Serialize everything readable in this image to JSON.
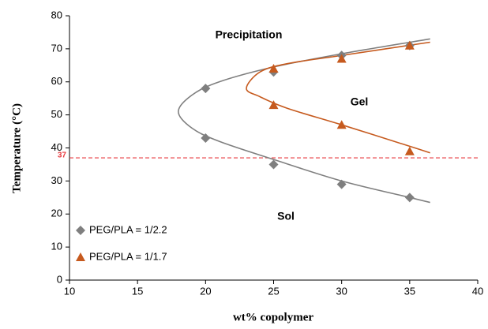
{
  "chart_data": {
    "type": "scatter",
    "x_label": "wt% copolymer",
    "y_label": "Temperature (°C)",
    "xlim": [
      10,
      40
    ],
    "xticks": [
      10,
      15,
      20,
      25,
      30,
      35,
      40
    ],
    "ylim": [
      0,
      80
    ],
    "yticks": [
      0,
      10,
      20,
      30,
      40,
      50,
      60,
      70,
      80
    ],
    "grid": false,
    "legend": "lower left",
    "annotations": [
      "Precipitation",
      "Gel",
      "Sol"
    ],
    "reference_line": {
      "value": 37,
      "color": "#e8383d"
    },
    "series": [
      {
        "name": "PEG/PLA = 1/2.2",
        "color": "#7f7f7f",
        "marker": "diamond",
        "x": [
          20,
          20,
          25,
          30,
          35,
          25,
          30,
          35
        ],
        "y": [
          58,
          43,
          35,
          29,
          25,
          63,
          68,
          71
        ],
        "fit": {
          "x": [
            36.5,
            30,
            25,
            21,
            19,
            18,
            19,
            21,
            25,
            30,
            35,
            36.5
          ],
          "y": [
            73,
            68.5,
            64.5,
            60,
            56,
            51,
            46,
            42,
            36.5,
            30,
            25,
            23.5
          ]
        }
      },
      {
        "name": "PEG/PLA = 1/1.7",
        "color": "#c65a1e",
        "marker": "triangle",
        "x": [
          25,
          30,
          35,
          25,
          30,
          35
        ],
        "y": [
          64,
          67,
          71,
          53,
          47,
          39
        ],
        "fit": {
          "x": [
            36.5,
            30,
            26,
            24,
            23,
            24,
            26,
            30,
            35,
            36.5
          ],
          "y": [
            72,
            68,
            65.5,
            63,
            58,
            55.5,
            52,
            47,
            40.5,
            38.5
          ]
        }
      }
    ]
  }
}
